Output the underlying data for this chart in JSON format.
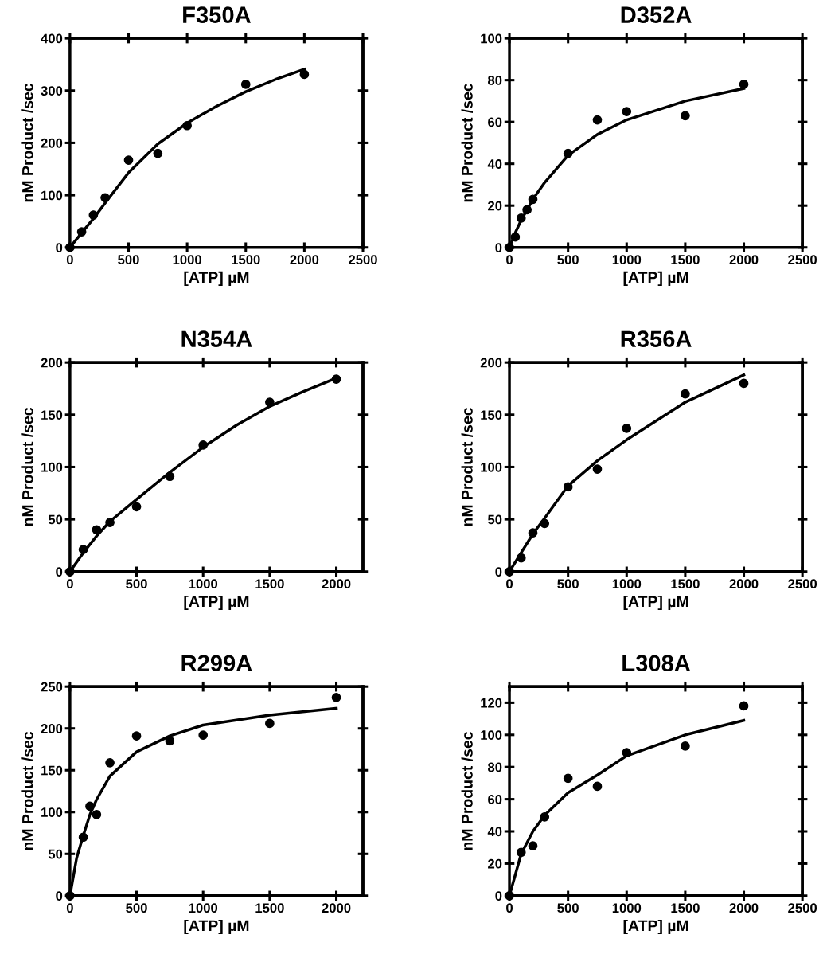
{
  "chart_data": [
    {
      "type": "scatter",
      "title": "F350A",
      "xlabel": "[ATP] µM",
      "ylabel": "nM Product /sec",
      "xlim": [
        0,
        2500
      ],
      "xticks": [
        0,
        500,
        1000,
        1500,
        2000,
        2500
      ],
      "ylim": [
        0,
        400
      ],
      "yticks": [
        0,
        100,
        200,
        300,
        400
      ],
      "grid": false,
      "series": [
        {
          "marker": "circle",
          "color": "#000000",
          "x": [
            0,
            100,
            200,
            300,
            500,
            750,
            1000,
            1500,
            2000
          ],
          "values": [
            0,
            30,
            62,
            95,
            167,
            180,
            233,
            312,
            331
          ]
        },
        {
          "type": "line",
          "marker": "none",
          "line_style": "solid",
          "color": "#000000",
          "x": [
            0,
            100,
            200,
            300,
            500,
            750,
            1000,
            1250,
            1500,
            1750,
            2000
          ],
          "values": [
            0,
            28,
            55,
            85,
            143,
            198,
            238,
            270,
            298,
            321,
            341
          ]
        }
      ]
    },
    {
      "type": "scatter",
      "title": "D352A",
      "xlabel": "[ATP] µM",
      "ylabel": "nM Product /sec",
      "xlim": [
        0,
        2500
      ],
      "xticks": [
        0,
        500,
        1000,
        1500,
        2000,
        2500
      ],
      "ylim": [
        0,
        100
      ],
      "yticks": [
        0,
        20,
        40,
        60,
        80,
        100
      ],
      "grid": false,
      "series": [
        {
          "marker": "circle",
          "color": "#000000",
          "x": [
            0,
            50,
            100,
            150,
            200,
            500,
            750,
            1000,
            1500,
            2000
          ],
          "values": [
            0,
            5,
            14,
            18,
            23,
            45,
            61,
            65,
            63,
            78
          ]
        },
        {
          "type": "line",
          "marker": "none",
          "line_style": "solid",
          "color": "#000000",
          "x": [
            0,
            50,
            100,
            200,
            300,
            500,
            750,
            1000,
            1500,
            2000
          ],
          "values": [
            0,
            7,
            13,
            23,
            31,
            44,
            54,
            61,
            70,
            76
          ]
        }
      ]
    },
    {
      "type": "scatter",
      "title": "N354A",
      "xlabel": "[ATP] µM",
      "ylabel": "nM Product /sec",
      "xlim": [
        0,
        2200
      ],
      "xticks": [
        0,
        500,
        1000,
        1500,
        2000
      ],
      "ylim": [
        0,
        200
      ],
      "yticks": [
        0,
        50,
        100,
        150,
        200
      ],
      "grid": false,
      "series": [
        {
          "marker": "circle",
          "color": "#000000",
          "x": [
            0,
            100,
            200,
            300,
            500,
            750,
            1000,
            1500,
            2000
          ],
          "values": [
            0,
            21,
            40,
            47,
            62,
            91,
            121,
            162,
            184
          ]
        },
        {
          "type": "line",
          "marker": "none",
          "line_style": "solid",
          "color": "#000000",
          "x": [
            0,
            100,
            200,
            300,
            500,
            750,
            1000,
            1250,
            1500,
            1750,
            2000
          ],
          "values": [
            0,
            18,
            34,
            48,
            69,
            95,
            119,
            140,
            158,
            172,
            185
          ]
        }
      ]
    },
    {
      "type": "scatter",
      "title": "R356A",
      "xlabel": "[ATP] µM",
      "ylabel": "nM Product /sec",
      "xlim": [
        0,
        2500
      ],
      "xticks": [
        0,
        500,
        1000,
        1500,
        2000,
        2500
      ],
      "ylim": [
        0,
        200
      ],
      "yticks": [
        0,
        50,
        100,
        150,
        200
      ],
      "grid": false,
      "series": [
        {
          "marker": "circle",
          "color": "#000000",
          "x": [
            0,
            100,
            200,
            300,
            500,
            750,
            1000,
            1500,
            2000
          ],
          "values": [
            0,
            13,
            37,
            46,
            81,
            98,
            137,
            170,
            180
          ]
        },
        {
          "type": "line",
          "marker": "none",
          "line_style": "solid",
          "color": "#000000",
          "x": [
            0,
            100,
            200,
            300,
            500,
            750,
            1000,
            1500,
            2000
          ],
          "values": [
            0,
            18,
            36,
            51,
            82,
            106,
            126,
            162,
            188
          ]
        }
      ]
    },
    {
      "type": "scatter",
      "title": "R299A",
      "xlabel": "[ATP] µM",
      "ylabel": "nM Product /sec",
      "xlim": [
        0,
        2200
      ],
      "xticks": [
        0,
        500,
        1000,
        1500,
        2000
      ],
      "ylim": [
        0,
        250
      ],
      "yticks": [
        0,
        50,
        100,
        150,
        200,
        250
      ],
      "grid": false,
      "series": [
        {
          "marker": "circle",
          "color": "#000000",
          "x": [
            0,
            100,
            150,
            200,
            300,
            500,
            750,
            1000,
            1500,
            2000
          ],
          "values": [
            0,
            70,
            107,
            97,
            159,
            191,
            185,
            192,
            206,
            237
          ]
        },
        {
          "type": "line",
          "marker": "none",
          "line_style": "solid",
          "color": "#000000",
          "x": [
            0,
            50,
            100,
            150,
            200,
            300,
            500,
            750,
            1000,
            1500,
            2000
          ],
          "values": [
            0,
            45,
            72,
            97,
            115,
            143,
            172,
            191,
            204,
            216,
            224
          ]
        }
      ]
    },
    {
      "type": "scatter",
      "title": "L308A",
      "xlabel": "[ATP] µM",
      "ylabel": "nM Product /sec",
      "xlim": [
        0,
        2500
      ],
      "xticks": [
        0,
        500,
        1000,
        1500,
        2000,
        2500
      ],
      "ylim": [
        0,
        130
      ],
      "yticks": [
        0,
        20,
        40,
        60,
        80,
        100,
        120
      ],
      "grid": false,
      "series": [
        {
          "marker": "circle",
          "color": "#000000",
          "x": [
            0,
            100,
            200,
            300,
            500,
            750,
            1000,
            1500,
            2000
          ],
          "values": [
            0,
            27,
            31,
            49,
            73,
            68,
            89,
            93,
            118
          ]
        },
        {
          "type": "line",
          "marker": "none",
          "line_style": "solid",
          "color": "#000000",
          "x": [
            0,
            100,
            200,
            300,
            500,
            750,
            1000,
            1500,
            2000
          ],
          "values": [
            0,
            26,
            40,
            50,
            64,
            75,
            87,
            100,
            109
          ]
        }
      ]
    }
  ]
}
